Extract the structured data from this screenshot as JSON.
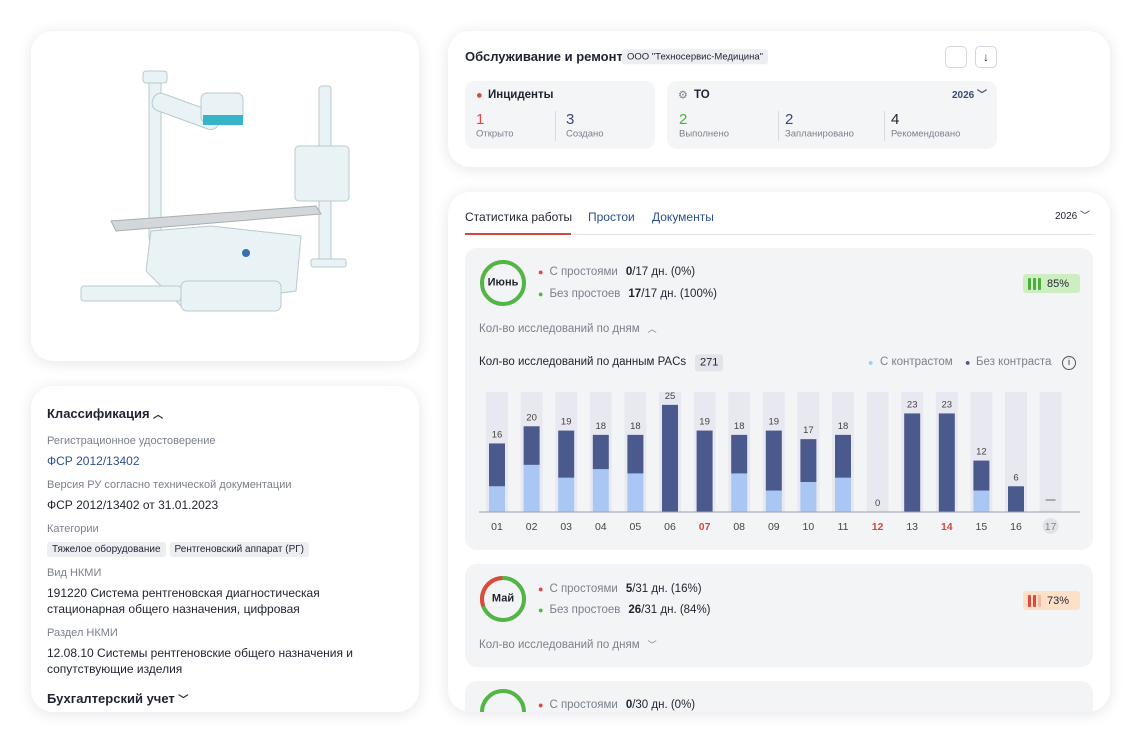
{
  "classification": {
    "title": "Классификация",
    "fields": [
      {
        "label": "Регистрационное удостоверение",
        "value": "ФСР 2012/13402"
      },
      {
        "label": "Версия РУ согласно технической документации",
        "value": "ФСР 2012/13402 от 31.01.2023"
      },
      {
        "label": "Категории",
        "tags": [
          "Тяжелое оборудование",
          "Рентгеновский аппарат (РГ)"
        ]
      },
      {
        "label": "Вид НКМИ",
        "value": "191220 Система рентгеновская диагностическая стационарная общего назначения, цифровая"
      },
      {
        "label": "Раздел НКМИ",
        "value": "12.08.10 Системы рентгеновские общего назначения и сопутствующие изделия"
      }
    ],
    "accounting": "Бухгалтерский учет"
  },
  "maintenance": {
    "title": "Обслуживание и ремонт",
    "company": "ООО \"Техносервис-Медицина\"",
    "incidents": {
      "title": "Инциденты",
      "stats": [
        {
          "value": "1",
          "label": "Открыто"
        },
        {
          "value": "3",
          "label": "Создано"
        }
      ]
    },
    "service": {
      "title": "ТО",
      "year": "2026",
      "stats": [
        {
          "value": "2",
          "label": "Выполнено"
        },
        {
          "value": "2",
          "label": "Запланировано"
        },
        {
          "value": "4",
          "label": "Рекомендовано"
        }
      ]
    }
  },
  "statistics": {
    "tabs": [
      "Статистика работы",
      "Простои",
      "Документы"
    ],
    "year": "2026",
    "months": [
      {
        "name": "Июнь",
        "rows": [
          {
            "label": "С простоями",
            "days": "0",
            "rest": "/17 дн. (0%)"
          },
          {
            "label": "Без простоев",
            "days": "17",
            "rest": "/17 дн. (100%)"
          }
        ],
        "score": "85%",
        "toggle": "Кол-во исследований по дням"
      },
      {
        "name": "Май",
        "rows": [
          {
            "label": "С простоями",
            "days": "5",
            "rest": "/31 дн. (16%)"
          },
          {
            "label": "Без простоев",
            "days": "26",
            "rest": "/31 дн. (84%)"
          }
        ],
        "score": "73%",
        "toggle": "Кол-во исследований по дням"
      },
      {
        "rows": [
          {
            "label": "С простоями",
            "days": "0",
            "rest": "/30 дн. (0%)"
          }
        ]
      }
    ]
  },
  "chart_data": {
    "type": "bar",
    "stacked": true,
    "title": "Кол-во исследований  по данным PACs",
    "total": "271",
    "categories": [
      "01",
      "02",
      "03",
      "04",
      "05",
      "06",
      "07",
      "08",
      "09",
      "10",
      "11",
      "12",
      "13",
      "14",
      "15",
      "16",
      "17"
    ],
    "weekend": [
      false,
      false,
      false,
      false,
      false,
      false,
      true,
      false,
      false,
      false,
      false,
      true,
      false,
      true,
      false,
      false,
      false
    ],
    "series": [
      {
        "name": "С контрастом",
        "color": "#a9c7f2",
        "values": [
          6,
          11,
          8,
          10,
          9,
          0,
          0,
          9,
          5,
          7,
          8,
          0,
          0,
          0,
          5,
          0,
          null
        ]
      },
      {
        "name": "Без контраста",
        "color": "#4b5a8d",
        "values": [
          10,
          9,
          11,
          8,
          9,
          25,
          19,
          9,
          14,
          10,
          10,
          0,
          23,
          23,
          7,
          6,
          null
        ]
      }
    ],
    "value_labels": [
      "16",
      "20",
      "19",
      "18",
      "18",
      "25",
      "19",
      "18",
      "19",
      "17",
      "18",
      "0",
      "23",
      "23",
      "12",
      "6",
      null
    ],
    "ylim": [
      0,
      28
    ]
  }
}
